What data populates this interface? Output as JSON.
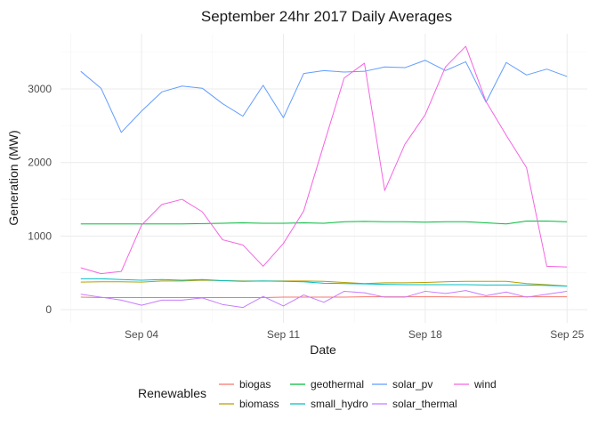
{
  "chart_data": {
    "type": "line",
    "title": "September 24hr 2017 Daily Averages",
    "xlabel": "Date",
    "ylabel": "Generation (MW)",
    "x": [
      "2017-09-01",
      "2017-09-02",
      "2017-09-03",
      "2017-09-04",
      "2017-09-05",
      "2017-09-06",
      "2017-09-07",
      "2017-09-08",
      "2017-09-09",
      "2017-09-10",
      "2017-09-11",
      "2017-09-12",
      "2017-09-13",
      "2017-09-14",
      "2017-09-15",
      "2017-09-16",
      "2017-09-17",
      "2017-09-18",
      "2017-09-19",
      "2017-09-20",
      "2017-09-21",
      "2017-09-22",
      "2017-09-23",
      "2017-09-24",
      "2017-09-25"
    ],
    "xlim": [
      "2017-08-31",
      "2017-09-26"
    ],
    "ylim": [
      -180,
      3750
    ],
    "x_ticks": [
      {
        "value": "2017-09-04",
        "label": "Sep 04"
      },
      {
        "value": "2017-09-11",
        "label": "Sep 11"
      },
      {
        "value": "2017-09-18",
        "label": "Sep 18"
      },
      {
        "value": "2017-09-25",
        "label": "Sep 25"
      }
    ],
    "y_ticks": [
      0,
      1000,
      2000,
      3000
    ],
    "grid": true,
    "legend": {
      "title": "Renewables",
      "position": "bottom",
      "columns": [
        [
          "biogas",
          "biomass"
        ],
        [
          "geothermal",
          "small_hydro"
        ],
        [
          "solar_pv",
          "solar_thermal"
        ],
        [
          "wind"
        ]
      ]
    },
    "series": [
      {
        "name": "biogas",
        "color": "#F8766D",
        "values": [
          170,
          165,
          165,
          165,
          165,
          165,
          165,
          165,
          165,
          165,
          170,
          170,
          170,
          170,
          175,
          175,
          175,
          175,
          175,
          170,
          175,
          175,
          175,
          175,
          175
        ]
      },
      {
        "name": "biomass",
        "color": "#B79F00",
        "values": [
          375,
          380,
          380,
          375,
          390,
          390,
          400,
          395,
          390,
          390,
          390,
          390,
          385,
          370,
          355,
          365,
          365,
          370,
          380,
          385,
          385,
          385,
          355,
          340,
          320
        ]
      },
      {
        "name": "geothermal",
        "color": "#00BA38",
        "values": [
          1165,
          1165,
          1165,
          1165,
          1165,
          1165,
          1170,
          1175,
          1180,
          1175,
          1175,
          1180,
          1175,
          1195,
          1200,
          1195,
          1195,
          1190,
          1195,
          1195,
          1180,
          1165,
          1205,
          1205,
          1195
        ]
      },
      {
        "name": "small_hydro",
        "color": "#00BFC4",
        "values": [
          420,
          420,
          410,
          400,
          410,
          400,
          410,
          395,
          385,
          390,
          385,
          380,
          360,
          355,
          350,
          345,
          340,
          340,
          340,
          340,
          335,
          335,
          335,
          330,
          320
        ]
      },
      {
        "name": "solar_pv",
        "color": "#619CFF",
        "values": [
          3240,
          3010,
          2410,
          2700,
          2960,
          3040,
          3010,
          2800,
          2630,
          3050,
          2610,
          3210,
          3250,
          3230,
          3240,
          3300,
          3290,
          3390,
          3250,
          3370,
          2820,
          3360,
          3190,
          3270,
          3170
        ]
      },
      {
        "name": "solar_thermal",
        "color": "#C77CFF",
        "values": [
          210,
          170,
          130,
          60,
          130,
          130,
          160,
          70,
          30,
          180,
          50,
          200,
          100,
          250,
          230,
          170,
          170,
          250,
          220,
          260,
          190,
          240,
          170,
          210,
          250
        ]
      },
      {
        "name": "wind",
        "color": "#F564E3",
        "values": [
          570,
          490,
          520,
          1150,
          1430,
          1500,
          1330,
          950,
          880,
          590,
          900,
          1340,
          2250,
          3150,
          3350,
          1620,
          2250,
          2650,
          3300,
          3580,
          2830,
          2370,
          1930,
          590,
          580
        ]
      }
    ]
  }
}
